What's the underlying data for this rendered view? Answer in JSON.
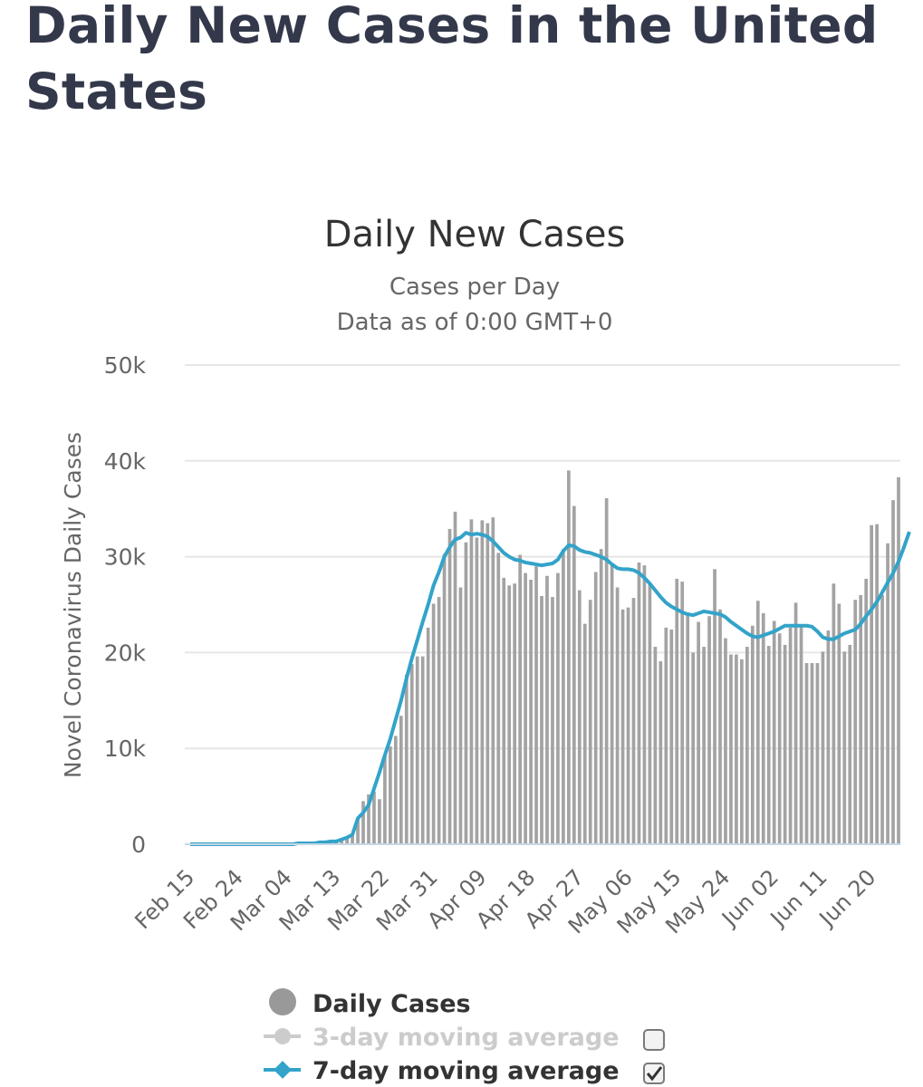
{
  "page": {
    "title": "Daily New Cases in the United States"
  },
  "chart_data": {
    "type": "bar",
    "title": "Daily New Cases",
    "subtitle": "Cases per Day",
    "subtitle2": "Data as of 0:00 GMT+0",
    "ylabel": "Novel Coronavirus Daily Cases",
    "ylim": [
      0,
      50000
    ],
    "yticks": [
      0,
      10000,
      20000,
      30000,
      40000,
      50000
    ],
    "ytick_labels": [
      "0",
      "10k",
      "20k",
      "30k",
      "40k",
      "50k"
    ],
    "start_date": "Feb 15",
    "xtick_labels": [
      "Feb 15",
      "Feb 24",
      "Mar 04",
      "Mar 13",
      "Mar 22",
      "Mar 31",
      "Apr 09",
      "Apr 18",
      "Apr 27",
      "May 06",
      "May 15",
      "May 24",
      "Jun 02",
      "Jun 11",
      "Jun 20"
    ],
    "xtick_every_days": 9,
    "colors": {
      "bars": "#a3a3a3",
      "avg7": "#33a3c9",
      "avg3": "#cccccc",
      "grid": "#e6e6e6",
      "axis": "#c5d7e8"
    },
    "series": [
      {
        "name": "Daily Cases",
        "values": [
          0,
          0,
          0,
          0,
          0,
          0,
          0,
          0,
          0,
          0,
          0,
          0,
          0,
          0,
          0,
          0,
          0,
          0,
          0,
          0,
          100,
          100,
          100,
          100,
          200,
          200,
          300,
          300,
          500,
          700,
          1000,
          2700,
          4500,
          5200,
          5500,
          4700,
          9200,
          10200,
          11300,
          13400,
          17700,
          18800,
          19600,
          19600,
          22600,
          25100,
          25800,
          30300,
          32900,
          34700,
          26800,
          31500,
          33900,
          32000,
          33800,
          33500,
          34100,
          30400,
          27800,
          27000,
          27200,
          30200,
          28300,
          27600,
          29000,
          25900,
          28000,
          25800,
          28300,
          30800,
          39000,
          35300,
          26500,
          23000,
          25500,
          28400,
          30800,
          36100,
          29300,
          26800,
          24500,
          24700,
          25700,
          29400,
          29100,
          27300,
          20600,
          19100,
          22600,
          22400,
          27700,
          27400,
          24200,
          20000,
          23200,
          20600,
          23800,
          28700,
          24500,
          21500,
          19800,
          19800,
          19300,
          20600,
          22800,
          25400,
          24100,
          20700,
          23300,
          22000,
          20800,
          22600,
          25200,
          22700,
          18900,
          18900,
          18900,
          20100,
          22300,
          27200,
          25100,
          20100,
          20800,
          25500,
          26000,
          27700,
          33300,
          33400,
          26000,
          31400,
          35900,
          38300
        ]
      },
      {
        "name": "7-day moving average",
        "values": [
          0,
          0,
          0,
          0,
          0,
          0,
          0,
          0,
          0,
          0,
          0,
          0,
          0,
          0,
          0,
          0,
          0,
          0,
          0,
          0,
          100,
          100,
          100,
          100,
          200,
          200,
          300,
          300,
          500,
          700,
          1000,
          2700,
          3300,
          4100,
          5800,
          7500,
          9300,
          11000,
          13000,
          15000,
          17300,
          19400,
          21300,
          23200,
          25000,
          27000,
          28400,
          30000,
          31000,
          31800,
          32000,
          32500,
          32300,
          32400,
          32300,
          32100,
          31600,
          31000,
          30400,
          30000,
          29700,
          29600,
          29400,
          29300,
          29200,
          29100,
          29200,
          29300,
          29700,
          30600,
          31200,
          31100,
          30700,
          30500,
          30400,
          30200,
          30000,
          29700,
          29200,
          28800,
          28700,
          28700,
          28600,
          28300,
          27800,
          27200,
          26500,
          25800,
          25200,
          24800,
          24500,
          24200,
          24000,
          23900,
          24100,
          24300,
          24200,
          24100,
          24000,
          23700,
          23200,
          22800,
          22400,
          22000,
          21700,
          21600,
          21800,
          22000,
          22200,
          22500,
          22800,
          22800,
          22800,
          22800,
          22800,
          22700,
          22200,
          21600,
          21400,
          21400,
          21700,
          22000,
          22200,
          22400,
          23000,
          23800,
          24500,
          25300,
          26300,
          27300,
          28300,
          29500,
          31000,
          32600
        ]
      }
    ]
  },
  "legend": {
    "items": [
      {
        "label": "Daily Cases",
        "color": "#999999",
        "enabled": true
      },
      {
        "label": "3-day moving average",
        "color": "#cccccc",
        "enabled": false
      },
      {
        "label": "7-day moving average",
        "color": "#33a3c9",
        "enabled": true
      }
    ]
  }
}
